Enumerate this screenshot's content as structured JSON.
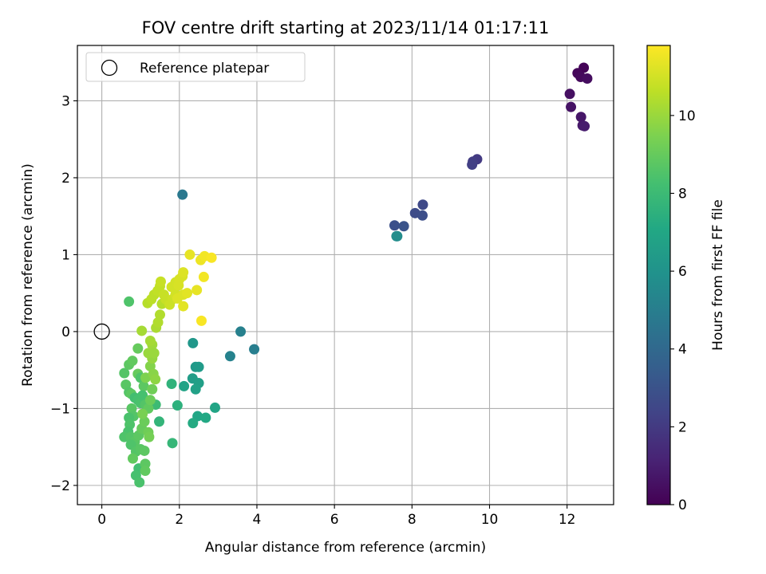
{
  "chart_data": {
    "type": "scatter",
    "title": "FOV centre drift starting at 2023/11/14 01:17:11",
    "xlabel": "Angular distance from reference (arcmin)",
    "ylabel": "Rotation from reference (arcmin)",
    "xlim": [
      -0.63,
      13.2
    ],
    "ylim": [
      -2.25,
      3.72
    ],
    "xticks": [
      0,
      2,
      4,
      6,
      8,
      10,
      12
    ],
    "yticks": [
      -2,
      -1,
      0,
      1,
      2,
      3
    ],
    "grid": true,
    "legend": {
      "placement": "top-left",
      "entries": [
        "Reference platepar"
      ]
    },
    "reference_point": {
      "x": 0,
      "y": 0,
      "label": "Reference platepar"
    },
    "colorbar": {
      "label": "Hours from first FF file",
      "range": [
        0,
        11.8
      ],
      "ticks": [
        0,
        2,
        4,
        6,
        8,
        10
      ],
      "colormap": "viridis"
    },
    "points": [
      {
        "x": 12.43,
        "y": 3.43,
        "h": 0.1
      },
      {
        "x": 12.27,
        "y": 3.36,
        "h": 0.2
      },
      {
        "x": 12.35,
        "y": 3.31,
        "h": 0.3
      },
      {
        "x": 12.52,
        "y": 3.29,
        "h": 0.4
      },
      {
        "x": 12.07,
        "y": 3.09,
        "h": 0.5
      },
      {
        "x": 12.1,
        "y": 2.92,
        "h": 0.6
      },
      {
        "x": 12.36,
        "y": 2.79,
        "h": 0.7
      },
      {
        "x": 12.4,
        "y": 2.68,
        "h": 0.8
      },
      {
        "x": 12.45,
        "y": 2.67,
        "h": 0.9
      },
      {
        "x": 9.68,
        "y": 2.24,
        "h": 2.0
      },
      {
        "x": 9.57,
        "y": 2.21,
        "h": 2.1
      },
      {
        "x": 9.55,
        "y": 2.17,
        "h": 2.2
      },
      {
        "x": 8.28,
        "y": 1.65,
        "h": 2.6
      },
      {
        "x": 8.08,
        "y": 1.54,
        "h": 2.7
      },
      {
        "x": 8.27,
        "y": 1.51,
        "h": 2.8
      },
      {
        "x": 7.55,
        "y": 1.38,
        "h": 2.9
      },
      {
        "x": 7.79,
        "y": 1.37,
        "h": 3.0
      },
      {
        "x": 2.08,
        "y": 1.78,
        "h": 4.7
      },
      {
        "x": 3.93,
        "y": -0.23,
        "h": 5.0
      },
      {
        "x": 3.58,
        "y": 0.0,
        "h": 5.1
      },
      {
        "x": 3.31,
        "y": -0.32,
        "h": 5.2
      },
      {
        "x": 7.62,
        "y": 1.24,
        "h": 5.6
      },
      {
        "x": 7.6,
        "y": 1.24,
        "h": 5.7
      },
      {
        "x": 2.35,
        "y": -0.15,
        "h": 6.2
      },
      {
        "x": 2.42,
        "y": -0.46,
        "h": 6.3
      },
      {
        "x": 2.5,
        "y": -0.46,
        "h": 6.4
      },
      {
        "x": 2.34,
        "y": -0.61,
        "h": 6.5
      },
      {
        "x": 2.5,
        "y": -0.67,
        "h": 6.6
      },
      {
        "x": 2.42,
        "y": -0.75,
        "h": 6.7
      },
      {
        "x": 2.12,
        "y": -0.71,
        "h": 6.8
      },
      {
        "x": 2.92,
        "y": -0.99,
        "h": 6.9
      },
      {
        "x": 2.47,
        "y": -1.1,
        "h": 7.0
      },
      {
        "x": 2.68,
        "y": -1.12,
        "h": 7.1
      },
      {
        "x": 2.35,
        "y": -1.19,
        "h": 7.2
      },
      {
        "x": 1.95,
        "y": -0.96,
        "h": 7.5
      },
      {
        "x": 1.8,
        "y": -0.68,
        "h": 7.6
      },
      {
        "x": 1.48,
        "y": -1.17,
        "h": 7.7
      },
      {
        "x": 1.82,
        "y": -1.45,
        "h": 7.8
      },
      {
        "x": 1.39,
        "y": -0.95,
        "h": 8.0
      },
      {
        "x": 0.7,
        "y": 0.39,
        "h": 8.5
      },
      {
        "x": 0.58,
        "y": -0.54,
        "h": 8.6
      },
      {
        "x": 0.62,
        "y": -0.69,
        "h": 8.7
      },
      {
        "x": 0.7,
        "y": -0.79,
        "h": 8.6
      },
      {
        "x": 0.76,
        "y": -0.81,
        "h": 8.8
      },
      {
        "x": 0.7,
        "y": -0.43,
        "h": 8.8
      },
      {
        "x": 0.79,
        "y": -0.38,
        "h": 8.9
      },
      {
        "x": 0.93,
        "y": -0.22,
        "h": 9.0
      },
      {
        "x": 0.93,
        "y": -0.55,
        "h": 9.0
      },
      {
        "x": 1.0,
        "y": -0.6,
        "h": 8.5
      },
      {
        "x": 1.08,
        "y": -0.71,
        "h": 8.8
      },
      {
        "x": 0.85,
        "y": -0.86,
        "h": 8.2
      },
      {
        "x": 0.93,
        "y": -0.89,
        "h": 8.3
      },
      {
        "x": 1.0,
        "y": -0.93,
        "h": 8.4
      },
      {
        "x": 1.05,
        "y": -0.83,
        "h": 8.3
      },
      {
        "x": 1.12,
        "y": -0.95,
        "h": 8.6
      },
      {
        "x": 1.2,
        "y": -1.0,
        "h": 8.9
      },
      {
        "x": 1.25,
        "y": -0.89,
        "h": 9.1
      },
      {
        "x": 1.3,
        "y": -0.75,
        "h": 9.2
      },
      {
        "x": 0.77,
        "y": -1.0,
        "h": 8.7
      },
      {
        "x": 0.82,
        "y": -1.1,
        "h": 8.6
      },
      {
        "x": 0.7,
        "y": -1.12,
        "h": 8.4
      },
      {
        "x": 0.72,
        "y": -1.21,
        "h": 8.5
      },
      {
        "x": 0.68,
        "y": -1.3,
        "h": 8.4
      },
      {
        "x": 0.58,
        "y": -1.37,
        "h": 8.5
      },
      {
        "x": 0.75,
        "y": -1.37,
        "h": 8.6
      },
      {
        "x": 0.85,
        "y": -1.43,
        "h": 8.7
      },
      {
        "x": 0.95,
        "y": -1.35,
        "h": 8.8
      },
      {
        "x": 1.03,
        "y": -1.26,
        "h": 9.0
      },
      {
        "x": 1.1,
        "y": -1.17,
        "h": 9.1
      },
      {
        "x": 1.2,
        "y": -1.31,
        "h": 9.2
      },
      {
        "x": 1.22,
        "y": -1.37,
        "h": 9.3
      },
      {
        "x": 0.75,
        "y": -1.47,
        "h": 8.5
      },
      {
        "x": 0.88,
        "y": -1.56,
        "h": 8.6
      },
      {
        "x": 1.0,
        "y": -1.53,
        "h": 8.7
      },
      {
        "x": 1.1,
        "y": -1.55,
        "h": 8.8
      },
      {
        "x": 0.8,
        "y": -1.65,
        "h": 8.9
      },
      {
        "x": 0.95,
        "y": -1.78,
        "h": 8.2
      },
      {
        "x": 1.12,
        "y": -1.72,
        "h": 8.8
      },
      {
        "x": 1.12,
        "y": -1.81,
        "h": 8.9
      },
      {
        "x": 0.88,
        "y": -1.87,
        "h": 8.3
      },
      {
        "x": 0.97,
        "y": -1.96,
        "h": 8.4
      },
      {
        "x": 1.05,
        "y": -1.07,
        "h": 9.4
      },
      {
        "x": 1.13,
        "y": -0.6,
        "h": 9.5
      },
      {
        "x": 1.25,
        "y": -0.45,
        "h": 9.6
      },
      {
        "x": 1.33,
        "y": -0.55,
        "h": 9.7
      },
      {
        "x": 1.38,
        "y": -0.62,
        "h": 9.8
      },
      {
        "x": 1.3,
        "y": -0.35,
        "h": 9.9
      },
      {
        "x": 1.2,
        "y": -0.28,
        "h": 10.0
      },
      {
        "x": 1.3,
        "y": -0.17,
        "h": 10.1
      },
      {
        "x": 1.35,
        "y": -0.28,
        "h": 10.0
      },
      {
        "x": 1.25,
        "y": -0.12,
        "h": 10.2
      },
      {
        "x": 1.03,
        "y": 0.01,
        "h": 10.2
      },
      {
        "x": 1.4,
        "y": 0.05,
        "h": 10.3
      },
      {
        "x": 1.45,
        "y": 0.12,
        "h": 10.4
      },
      {
        "x": 1.5,
        "y": 0.22,
        "h": 10.4
      },
      {
        "x": 1.55,
        "y": 0.36,
        "h": 10.5
      },
      {
        "x": 1.18,
        "y": 0.37,
        "h": 10.5
      },
      {
        "x": 1.28,
        "y": 0.42,
        "h": 10.6
      },
      {
        "x": 1.35,
        "y": 0.48,
        "h": 10.6
      },
      {
        "x": 1.44,
        "y": 0.53,
        "h": 10.7
      },
      {
        "x": 1.5,
        "y": 0.59,
        "h": 10.7
      },
      {
        "x": 1.52,
        "y": 0.65,
        "h": 10.8
      },
      {
        "x": 1.6,
        "y": 0.48,
        "h": 10.8
      },
      {
        "x": 1.65,
        "y": 0.42,
        "h": 10.8
      },
      {
        "x": 1.75,
        "y": 0.35,
        "h": 10.9
      },
      {
        "x": 1.82,
        "y": 0.42,
        "h": 10.9
      },
      {
        "x": 1.9,
        "y": 0.48,
        "h": 11.0
      },
      {
        "x": 1.8,
        "y": 0.58,
        "h": 11.0
      },
      {
        "x": 1.9,
        "y": 0.64,
        "h": 11.0
      },
      {
        "x": 1.98,
        "y": 0.6,
        "h": 11.1
      },
      {
        "x": 2.0,
        "y": 0.68,
        "h": 11.1
      },
      {
        "x": 2.08,
        "y": 0.72,
        "h": 11.1
      },
      {
        "x": 2.1,
        "y": 0.77,
        "h": 11.2
      },
      {
        "x": 1.95,
        "y": 0.43,
        "h": 11.2
      },
      {
        "x": 2.1,
        "y": 0.48,
        "h": 11.2
      },
      {
        "x": 2.1,
        "y": 0.33,
        "h": 11.3
      },
      {
        "x": 2.2,
        "y": 0.5,
        "h": 11.3
      },
      {
        "x": 2.45,
        "y": 0.54,
        "h": 11.4
      },
      {
        "x": 2.27,
        "y": 1.0,
        "h": 11.4
      },
      {
        "x": 2.55,
        "y": 0.93,
        "h": 11.5
      },
      {
        "x": 2.65,
        "y": 0.98,
        "h": 11.6
      },
      {
        "x": 2.83,
        "y": 0.96,
        "h": 11.7
      },
      {
        "x": 2.63,
        "y": 0.71,
        "h": 11.6
      },
      {
        "x": 2.57,
        "y": 0.14,
        "h": 11.7
      }
    ]
  }
}
